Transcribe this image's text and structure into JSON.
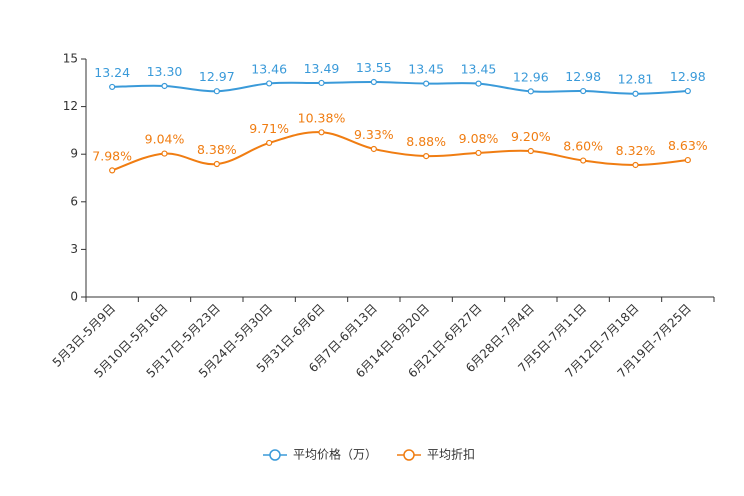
{
  "chart_data": {
    "type": "line",
    "title": "",
    "xlabel": "",
    "ylabel": "",
    "ylim": [
      0,
      15
    ],
    "yticks": [
      "0",
      "3",
      "6",
      "9",
      "12",
      "15"
    ],
    "yticks_values": [
      0,
      3,
      6,
      9,
      12,
      15
    ],
    "grid": false,
    "legend_position": "bottom-center",
    "categories": [
      "5月3日-5月9日",
      "5月10日-5月16日",
      "5月17日-5月23日",
      "5月24日-5月30日",
      "5月31日-6月6日",
      "6月7日-6月13日",
      "6月14日-6月20日",
      "6月21日-6月27日",
      "6月28日-7月4日",
      "7月5日-7月11日",
      "7月12日-7月18日",
      "7月19日-7月25日"
    ],
    "series": [
      {
        "name": "平均价格（万）",
        "color": "#3a9ad9",
        "values": [
          13.24,
          13.3,
          12.97,
          13.46,
          13.49,
          13.55,
          13.45,
          13.45,
          12.96,
          12.98,
          12.81,
          12.98
        ],
        "labels": [
          "13.24",
          "13.30",
          "12.97",
          "13.46",
          "13.49",
          "13.55",
          "13.45",
          "13.45",
          "12.96",
          "12.98",
          "12.81",
          "12.98"
        ]
      },
      {
        "name": "平均折扣",
        "color": "#f07d12",
        "values": [
          7.98,
          9.04,
          8.38,
          9.71,
          10.38,
          9.33,
          8.88,
          9.08,
          9.2,
          8.6,
          8.32,
          8.63
        ],
        "labels": [
          "7.98%",
          "9.04%",
          "8.38%",
          "9.71%",
          "10.38%",
          "9.33%",
          "8.88%",
          "9.08%",
          "9.20%",
          "8.60%",
          "8.32%",
          "8.63%"
        ]
      }
    ]
  }
}
